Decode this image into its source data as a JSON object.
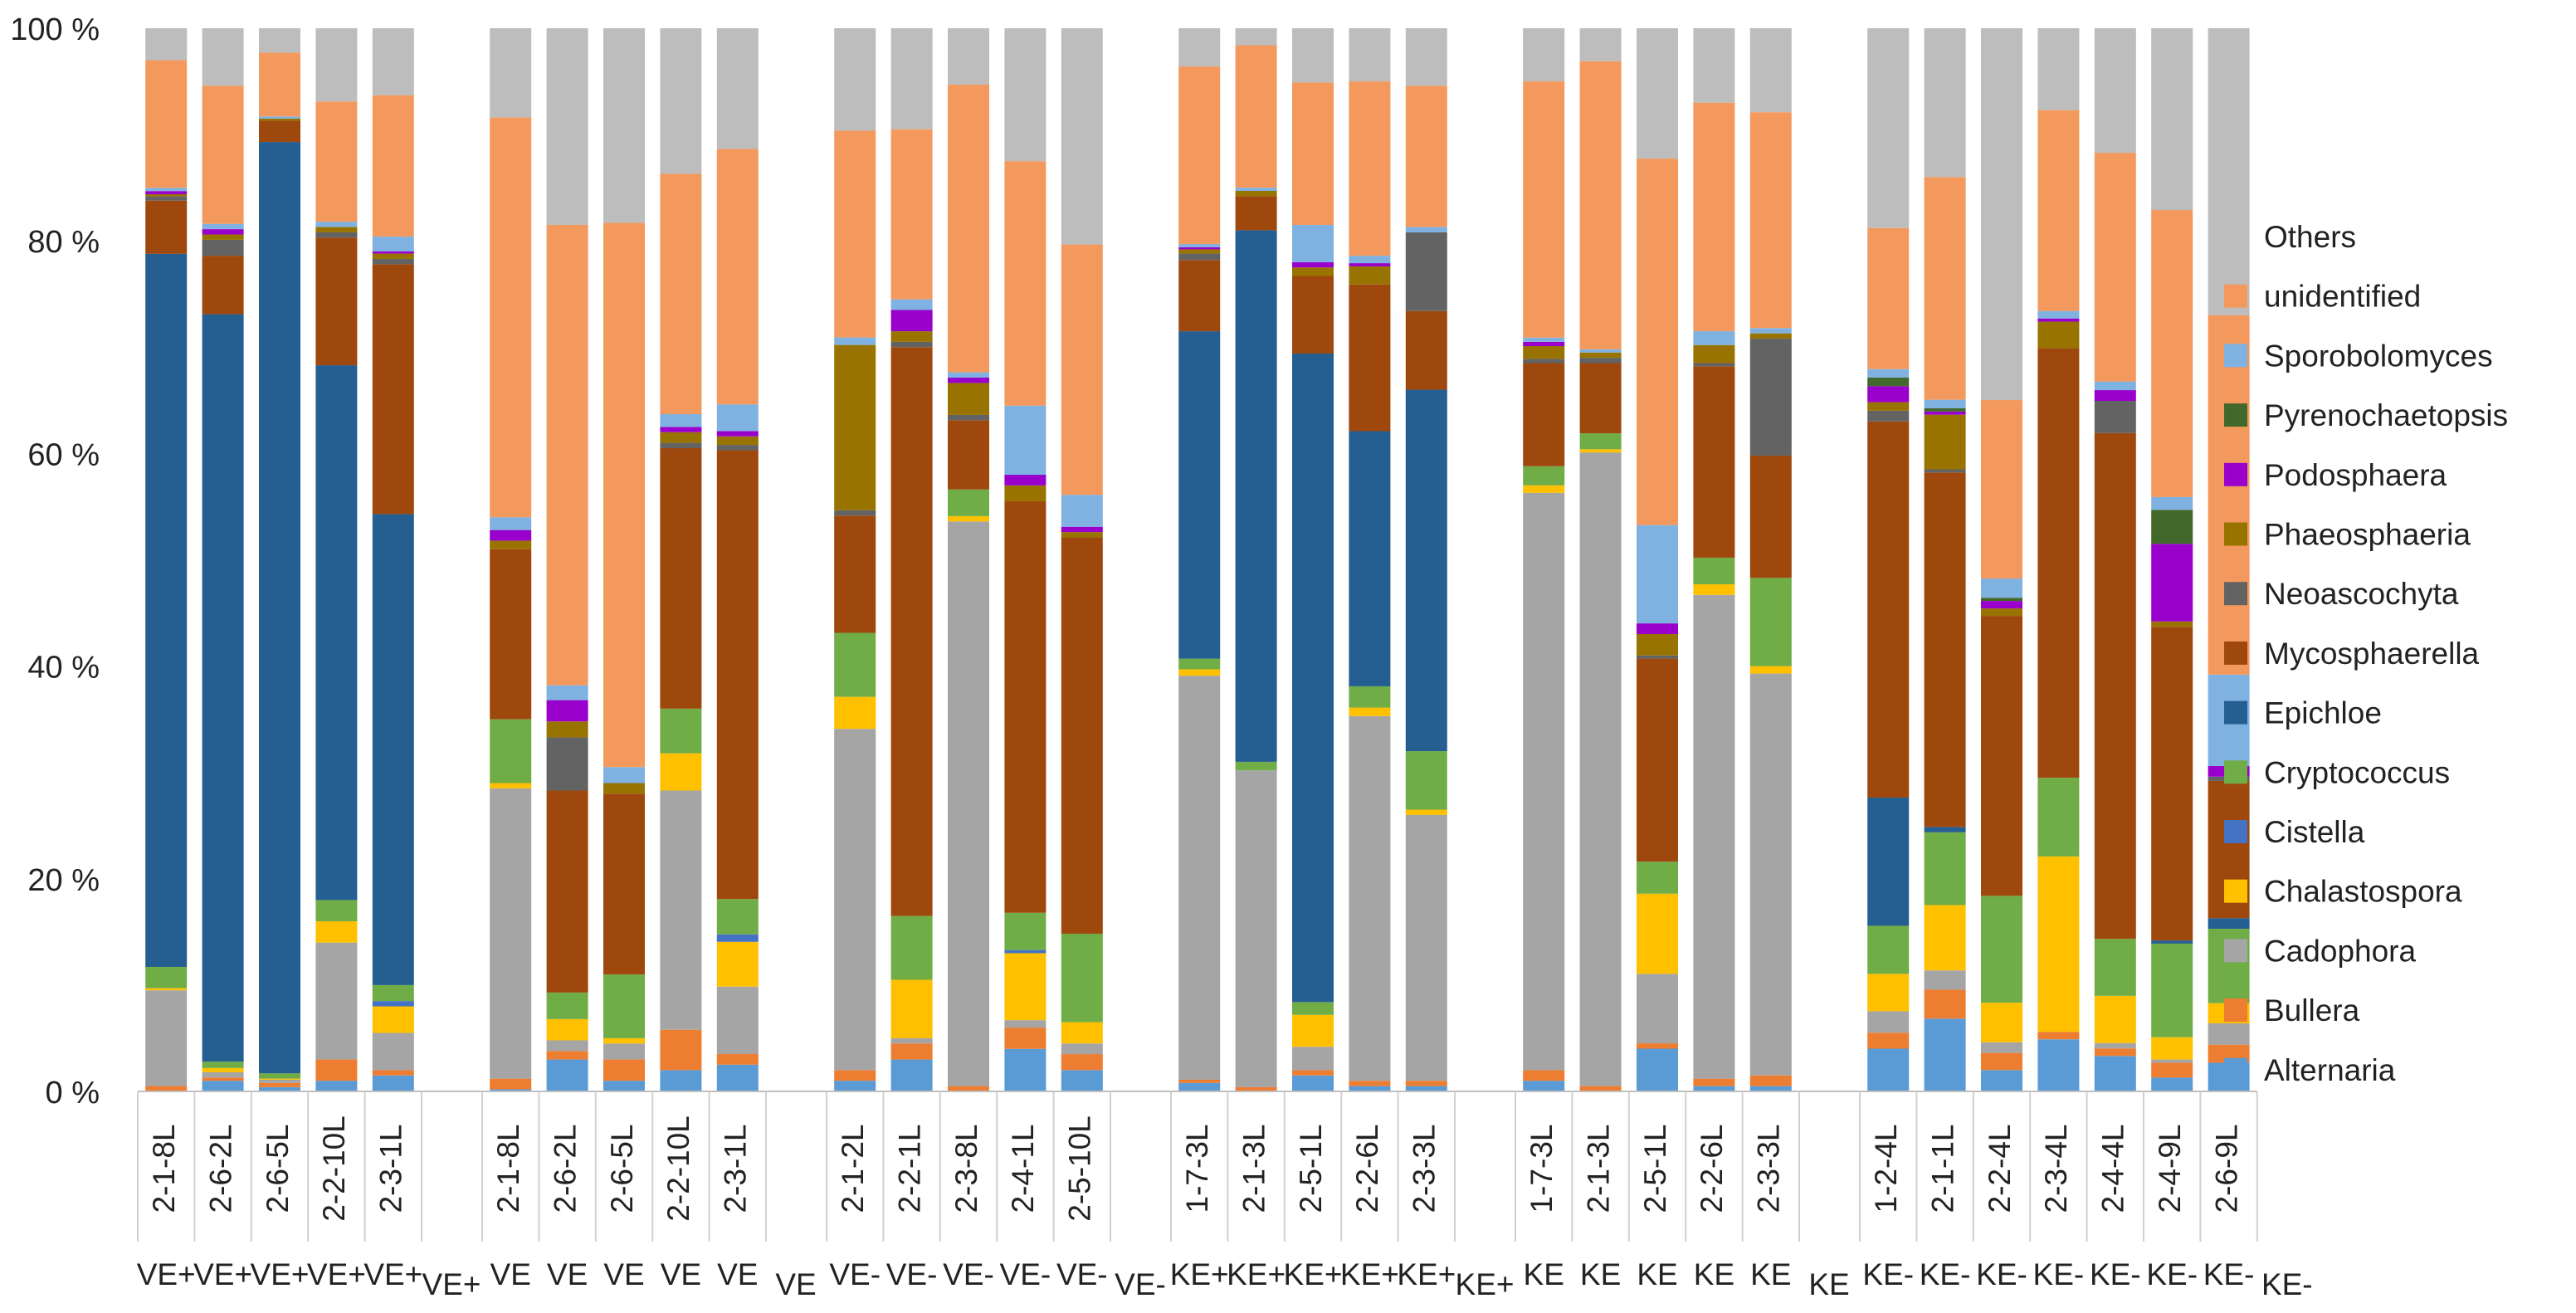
{
  "chart_data": {
    "type": "bar",
    "stacked": true,
    "percent": true,
    "ylim": [
      0,
      100
    ],
    "yticks": [
      {
        "value": 0,
        "label": "0 %"
      },
      {
        "value": 20,
        "label": "20 %"
      },
      {
        "value": 40,
        "label": "40 %"
      },
      {
        "value": 60,
        "label": "60 %"
      },
      {
        "value": 80,
        "label": "80 %"
      },
      {
        "value": 100,
        "label": "100 %"
      }
    ],
    "legend_position": "right",
    "series": [
      {
        "name": "Alternaria",
        "color": "#5B9BD5"
      },
      {
        "name": "Bullera",
        "color": "#ED7D31"
      },
      {
        "name": "Cadophora",
        "color": "#A5A5A5"
      },
      {
        "name": "Chalastospora",
        "color": "#FFC000"
      },
      {
        "name": "Cistella",
        "color": "#4472C4"
      },
      {
        "name": "Cryptococcus",
        "color": "#70AD47"
      },
      {
        "name": "Epichloe",
        "color": "#255E91"
      },
      {
        "name": "Mycosphaerella",
        "color": "#9E480E"
      },
      {
        "name": "Neoascochyta",
        "color": "#636363"
      },
      {
        "name": "Phaeosphaeria",
        "color": "#997300"
      },
      {
        "name": "Podosphaera",
        "color": "#9900CC"
      },
      {
        "name": "Pyrenochaetopsis",
        "color": "#43682B"
      },
      {
        "name": "Sporobolomyces",
        "color": "#7FB2E0"
      },
      {
        "name": "unidentified",
        "color": "#F4995E"
      },
      {
        "name": "Others",
        "color": "#BDBDBD"
      }
    ],
    "groups": [
      {
        "label": "VE+",
        "bars": [
          {
            "label": "2-1-8L",
            "values": [
              0,
              0.5,
              9,
              0.2,
              0,
              2,
              67,
              5,
              0.4,
              0.2,
              0.3,
              0,
              0.3,
              12,
              3
            ]
          },
          {
            "label": "2-6-2L",
            "values": [
              1,
              0.3,
              0.5,
              0.4,
              0,
              0.6,
              70.3,
              5.5,
              1.5,
              0.5,
              0.5,
              0,
              0.5,
              13,
              5.4
            ]
          },
          {
            "label": "2-6-5L",
            "values": [
              0.4,
              0.4,
              0.3,
              0.1,
              0,
              0.5,
              87.6,
              2,
              0,
              0.2,
              0,
              0,
              0.2,
              6,
              2.3
            ]
          },
          {
            "label": "2-2-10L",
            "values": [
              1,
              2,
              11,
              2,
              0,
              2,
              50.3,
              12,
              0.5,
              0.5,
              0,
              0,
              0.5,
              11.3,
              6.9
            ]
          },
          {
            "label": "2-3-1L",
            "values": [
              1.5,
              0.5,
              3.5,
              2.5,
              0.5,
              1.5,
              44.3,
              23.5,
              0.5,
              0.5,
              0.2,
              0,
              1.4,
              13.3,
              6.3
            ]
          }
        ]
      },
      {
        "label": "VE",
        "bars": [
          {
            "label": "2-1-8L",
            "values": [
              0.2,
              1,
              27.3,
              0.5,
              0,
              6,
              0,
              16,
              0,
              0.8,
              1,
              0,
              1.2,
              37.6,
              8.4
            ]
          },
          {
            "label": "2-6-2L",
            "values": [
              3,
              0.8,
              1,
              2,
              0,
              2.5,
              0,
              19,
              5,
              1.5,
              2,
              0,
              1.4,
              43.3,
              18.5
            ]
          },
          {
            "label": "2-6-5L",
            "values": [
              1,
              2,
              1.5,
              0.5,
              0,
              6,
              0,
              17,
              0,
              1,
              0,
              0,
              1.5,
              51.2,
              18.3
            ]
          },
          {
            "label": "2-2-10L",
            "values": [
              2,
              3.8,
              22.5,
              3.5,
              0,
              4.2,
              0,
              24.5,
              0.5,
              1,
              0.5,
              0,
              1.2,
              22.6,
              13.7
            ]
          },
          {
            "label": "2-3-1L",
            "values": [
              2.5,
              1,
              6.3,
              4.2,
              0.7,
              3.3,
              0,
              42,
              0.5,
              0.8,
              0.5,
              0,
              2.5,
              23.9,
              11.3
            ]
          }
        ]
      },
      {
        "label": "VE-",
        "bars": [
          {
            "label": "2-1-2L",
            "values": [
              1,
              1,
              32,
              3,
              0,
              6,
              0,
              11,
              0.5,
              15.5,
              0,
              0,
              0.7,
              19.4,
              9.6
            ]
          },
          {
            "label": "2-2-1L",
            "values": [
              3,
              1.5,
              0.5,
              5.5,
              0,
              6,
              0,
              53.5,
              0.5,
              1,
              2,
              0,
              1,
              16,
              9.5
            ]
          },
          {
            "label": "2-3-8L",
            "values": [
              0,
              0.5,
              53,
              0.5,
              0,
              2.5,
              0,
              6.5,
              0.5,
              3,
              0.5,
              0,
              0.5,
              27,
              5.3
            ]
          },
          {
            "label": "2-4-1L",
            "values": [
              4,
              2,
              0.7,
              6.3,
              0.3,
              3.5,
              0,
              38.7,
              0,
              1.5,
              1,
              0,
              6.5,
              23,
              12.5
            ]
          },
          {
            "label": "2-5-10L",
            "values": [
              2,
              1.5,
              1,
              2,
              0,
              8.3,
              0,
              37.2,
              0,
              0.5,
              0.5,
              0,
              3,
              23.5,
              20.3
            ]
          }
        ]
      },
      {
        "label": "KE+",
        "bars": [
          {
            "label": "1-7-3L",
            "values": [
              0.8,
              0.3,
              38,
              0.6,
              0,
              1,
              30.8,
              6.7,
              0.6,
              0.4,
              0.2,
              0,
              0.3,
              16.7,
              3.6
            ]
          },
          {
            "label": "2-1-3L",
            "values": [
              0,
              0.4,
              29.8,
              0,
              0,
              0.8,
              50,
              3.2,
              0,
              0.5,
              0,
              0,
              0.3,
              13.4,
              1.6
            ]
          },
          {
            "label": "2-5-1L",
            "values": [
              1.5,
              0.5,
              2.2,
              3,
              0,
              1.2,
              61,
              7.3,
              0,
              0.8,
              0.5,
              0,
              3.5,
              13.4,
              5.1
            ]
          },
          {
            "label": "2-2-6L",
            "values": [
              0.5,
              0.5,
              34.3,
              0.8,
              0,
              2,
              24,
              13.8,
              0,
              1.7,
              0.3,
              0,
              0.7,
              16.4,
              5
            ]
          },
          {
            "label": "2-3-3L",
            "values": [
              0.5,
              0.5,
              25,
              0.5,
              0,
              5.5,
              34,
              7.4,
              7.4,
              0,
              0,
              0,
              0.5,
              13.3,
              5.4
            ]
          }
        ]
      },
      {
        "label": "KE",
        "bars": [
          {
            "label": "1-7-3L",
            "values": [
              1,
              1,
              54.3,
              0.7,
              0,
              1.8,
              0,
              9.7,
              0.4,
              1.2,
              0.4,
              0,
              0.4,
              24.1,
              5
            ]
          },
          {
            "label": "2-1-3L",
            "values": [
              0,
              0.5,
              59.6,
              0.3,
              0,
              1.5,
              0,
              6.6,
              0.5,
              0.5,
              0,
              0,
              0.3,
              27.1,
              3.1
            ]
          },
          {
            "label": "2-5-1L",
            "values": [
              4,
              0.5,
              6.5,
              7.5,
              0,
              3,
              0,
              19,
              0.3,
              2,
              1,
              0,
              9.2,
              34.3,
              12.2
            ]
          },
          {
            "label": "2-2-6L",
            "values": [
              0.5,
              0.7,
              45.5,
              1,
              0,
              2.5,
              0,
              18,
              0.3,
              1.7,
              0,
              0,
              1.3,
              21.5,
              7
            ]
          },
          {
            "label": "2-3-3L",
            "values": [
              0.5,
              1,
              37.8,
              0.7,
              0,
              8.3,
              0,
              11.5,
              11,
              0.5,
              0,
              0,
              0.5,
              20.3,
              7.9
            ]
          }
        ]
      },
      {
        "label": "KE-",
        "bars": [
          {
            "label": "1-2-4L",
            "values": [
              4,
              1.5,
              2,
              3.5,
              0,
              4.5,
              12,
              35.2,
              1,
              0.8,
              1.5,
              0.8,
              0.8,
              13.2,
              18.7
            ]
          },
          {
            "label": "2-1-1L",
            "values": [
              6.8,
              2.7,
              1.8,
              6.1,
              0,
              6.8,
              0.5,
              33.1,
              0.3,
              5.1,
              0.3,
              0.3,
              0.8,
              20.8,
              13.9
            ]
          },
          {
            "label": "2-2-4L",
            "values": [
              2,
              1.6,
              1,
              3.7,
              0,
              10,
              0,
              26.2,
              0,
              0.7,
              0.7,
              0.3,
              1.8,
              16.7,
              34.8
            ]
          },
          {
            "label": "2-3-4L",
            "values": [
              4.9,
              0.7,
              0,
              16.5,
              0,
              7.4,
              0,
              40.4,
              0,
              2.5,
              0.3,
              0,
              0.7,
              18.9,
              7.7
            ]
          },
          {
            "label": "2-4-4L",
            "values": [
              3.3,
              0.7,
              0.5,
              4.4,
              0,
              5.3,
              0,
              47.1,
              3,
              0,
              1,
              0,
              0.8,
              21.3,
              11.6
            ]
          },
          {
            "label": "2-4-9L",
            "values": [
              1.3,
              1.4,
              0.3,
              2.1,
              0,
              8.8,
              0.3,
              29.5,
              0,
              0.5,
              7.3,
              3.2,
              1.2,
              27,
              17.1
            ]
          },
          {
            "label": "2-6-9L",
            "values": [
              2.7,
              1.7,
              2,
              1.9,
              0,
              7,
              1,
              12.9,
              0.4,
              0,
              1,
              0,
              8.6,
              33.8,
              27
            ]
          }
        ]
      }
    ]
  }
}
